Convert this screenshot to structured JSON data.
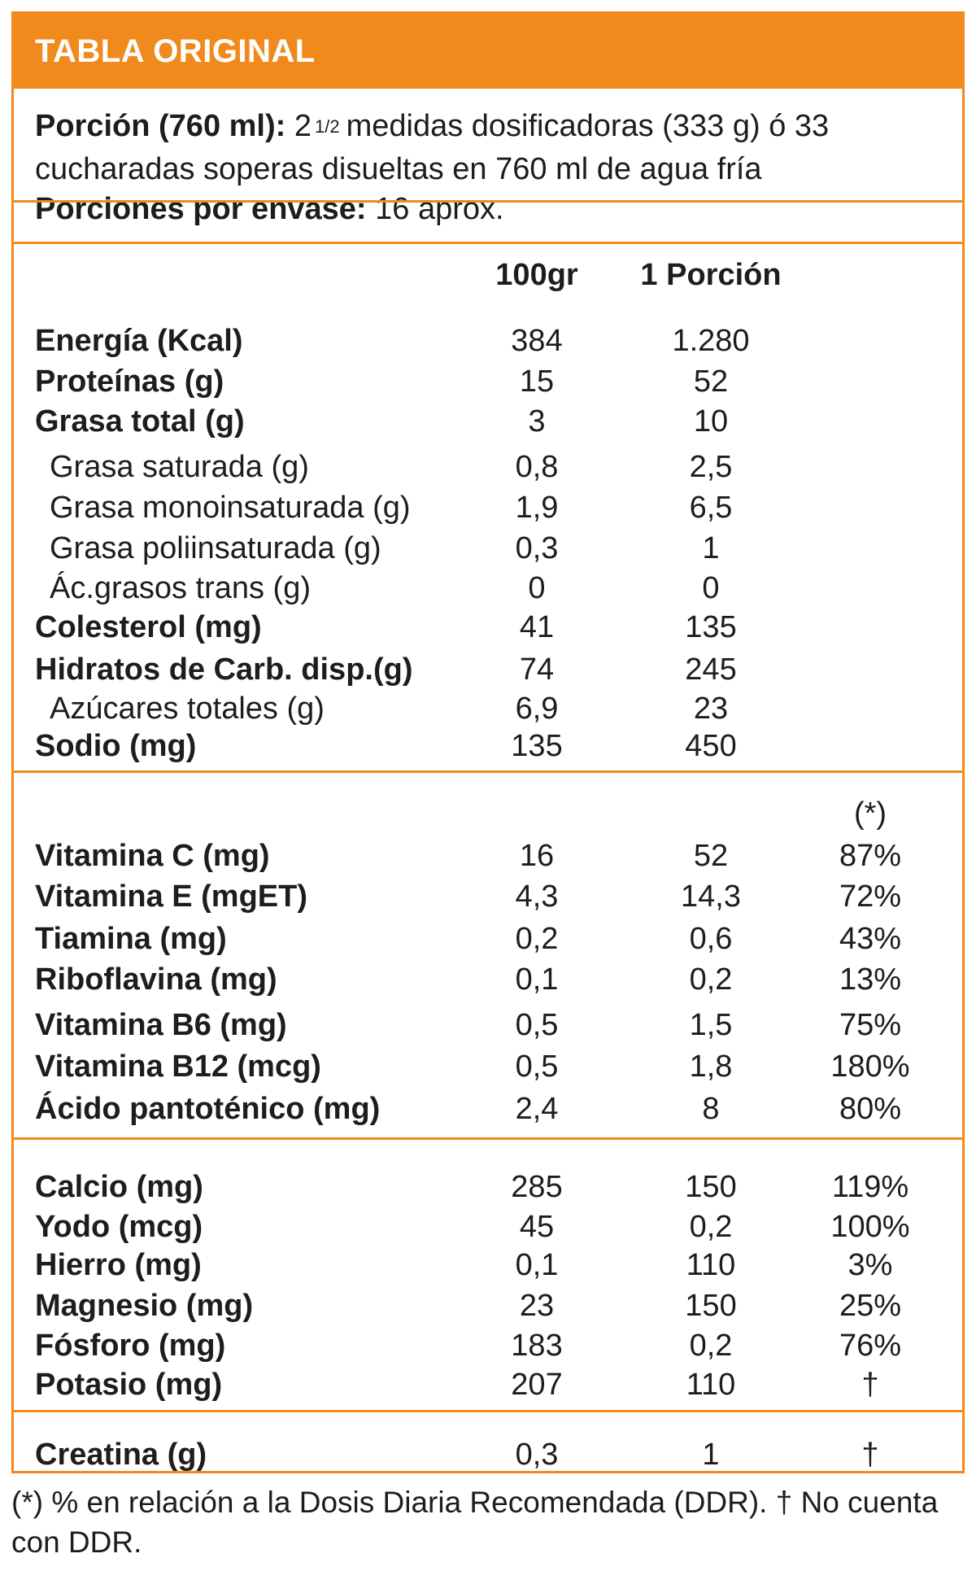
{
  "header": {
    "title": "TABLA ORIGINAL"
  },
  "portion": {
    "label1": "Porción (760 ml):",
    "num": "2",
    "frac": "1/2",
    "text1": "medidas dosificadoras (333 g) ó 33 cucharadas soperas disueltas en 760 ml de agua fría",
    "label2": "Porciones por envase:",
    "text2": "16 aprox."
  },
  "columns": {
    "per100": "100gr",
    "perPortion": "1 Porción",
    "ddr_note": "(*)"
  },
  "macros": [
    {
      "label": "Energía (Kcal)",
      "v1": "384",
      "v2": "1.280",
      "style": "bold"
    },
    {
      "label": "Proteínas (g)",
      "v1": "15",
      "v2": "52",
      "style": "bold"
    },
    {
      "label": "Grasa total (g)",
      "v1": "3",
      "v2": "10",
      "style": "bold"
    },
    {
      "label": "Grasa saturada (g)",
      "v1": "0,8",
      "v2": "2,5",
      "style": "sub"
    },
    {
      "label": "Grasa monoinsaturada (g)",
      "v1": "1,9",
      "v2": "6,5",
      "style": "sub"
    },
    {
      "label": "Grasa poliinsaturada (g)",
      "v1": "0,3",
      "v2": "1",
      "style": "sub"
    },
    {
      "label": "Ác.grasos trans (g)",
      "v1": "0",
      "v2": "0",
      "style": "sub"
    },
    {
      "label": "Colesterol (mg)",
      "v1": "41",
      "v2": "135",
      "style": "bold"
    },
    {
      "label": "Hidratos de Carb. disp.(g)",
      "v1": "74",
      "v2": "245",
      "style": "bold"
    },
    {
      "label": "Azúcares totales (g)",
      "v1": "6,9",
      "v2": "23",
      "style": "sub"
    },
    {
      "label": "Sodio (mg)",
      "v1": "135",
      "v2": "450",
      "style": "bold"
    }
  ],
  "vitamins": [
    {
      "label": "Vitamina C (mg)",
      "v1": "16",
      "v2": "52",
      "v3": "87%"
    },
    {
      "label": "Vitamina E (mgET)",
      "v1": "4,3",
      "v2": "14,3",
      "v3": "72%"
    },
    {
      "label": "Tiamina (mg)",
      "v1": "0,2",
      "v2": "0,6",
      "v3": "43%"
    },
    {
      "label": "Riboflavina (mg)",
      "v1": "0,1",
      "v2": "0,2",
      "v3": "13%"
    },
    {
      "label": "Vitamina B6 (mg)",
      "v1": "0,5",
      "v2": "1,5",
      "v3": "75%"
    },
    {
      "label": "Vitamina B12 (mcg)",
      "v1": "0,5",
      "v2": "1,8",
      "v3": "180%"
    },
    {
      "label": "Ácido pantoténico (mg)",
      "v1": "2,4",
      "v2": "8",
      "v3": "80%"
    }
  ],
  "minerals": [
    {
      "label": "Calcio (mg)",
      "v1": "285",
      "v2": "150",
      "v3": "119%"
    },
    {
      "label": "Yodo (mcg)",
      "v1": "45",
      "v2": "0,2",
      "v3": "100%"
    },
    {
      "label": "Hierro (mg)",
      "v1": "0,1",
      "v2": "110",
      "v3": "3%"
    },
    {
      "label": "Magnesio (mg)",
      "v1": "23",
      "v2": "150",
      "v3": "25%"
    },
    {
      "label": "Fósforo (mg)",
      "v1": "183",
      "v2": "0,2",
      "v3": "76%"
    },
    {
      "label": "Potasio (mg)",
      "v1": "207",
      "v2": "110",
      "v3": "†"
    }
  ],
  "extra": [
    {
      "label": "Creatina (g)",
      "v1": "0,3",
      "v2": "1",
      "v3": "†"
    }
  ],
  "footnote": "(*) % en relación a la Dosis Diaria Recomendada (DDR). † No cuenta con DDR.",
  "colors": {
    "accent": "#f08a1c",
    "text": "#1d1d1b"
  }
}
